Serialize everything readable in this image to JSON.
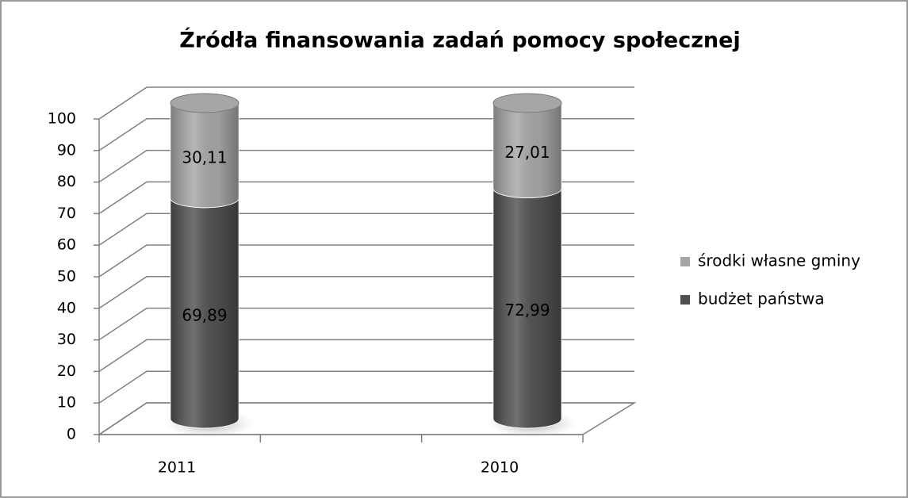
{
  "chart_data": {
    "type": "bar3d_stacked",
    "title": "Źródła finansowania zadań pomocy społecznej",
    "categories": [
      "2011",
      "2010"
    ],
    "series": [
      {
        "name": "budżet państwa",
        "color": "#505050",
        "values": [
          69.89,
          72.99
        ],
        "value_labels": [
          "69,89",
          "72,99"
        ]
      },
      {
        "name": "środki własne gminy",
        "color": "#a6a6a6",
        "values": [
          30.11,
          27.01
        ],
        "value_labels": [
          "30,11",
          "27,01"
        ]
      }
    ],
    "ylim": [
      0,
      100
    ],
    "yticks": [
      0,
      10,
      20,
      30,
      40,
      50,
      60,
      70,
      80,
      90,
      100
    ],
    "grid": true,
    "legend": "right"
  }
}
